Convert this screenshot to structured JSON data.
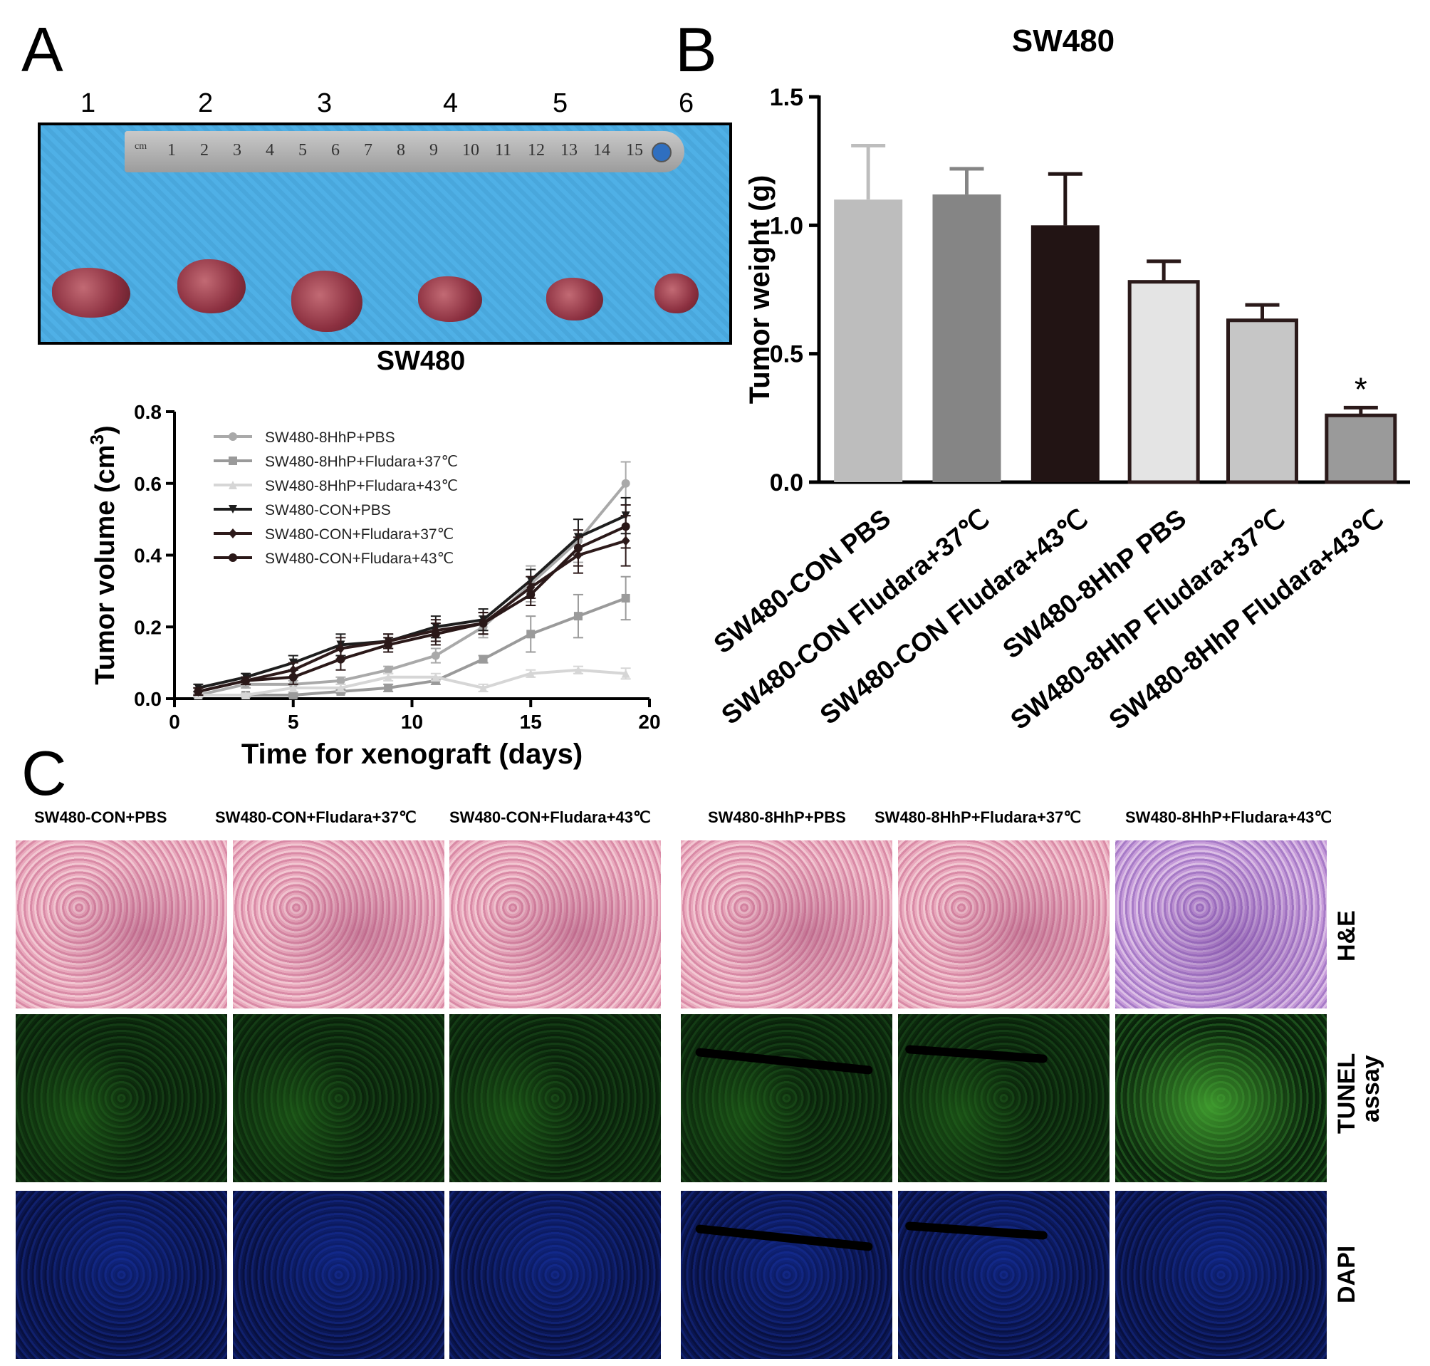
{
  "panels": {
    "A": "A",
    "B": "B",
    "C": "C"
  },
  "panel_a": {
    "photo_numbers": [
      "1",
      "2",
      "3",
      "4",
      "5",
      "6"
    ],
    "photo_caption": "SW480",
    "ruler_numbers": [
      "cm",
      "1",
      "2",
      "3",
      "4",
      "5",
      "6",
      "7",
      "8",
      "9",
      "10",
      "11",
      "12",
      "13",
      "14",
      "15"
    ]
  },
  "chart_data": [
    {
      "type": "line",
      "xlabel": "Time for xenograft (days)",
      "ylabel": "Tumor volume (cm",
      "ylabel_sup": "3",
      "ylabel_close": ")",
      "xlim": [
        0,
        20
      ],
      "ylim": [
        0,
        0.8
      ],
      "xticks": [
        "0",
        "5",
        "10",
        "15",
        "20"
      ],
      "yticks": [
        "0.0",
        "0.2",
        "0.4",
        "0.6",
        "0.8"
      ],
      "legend_position": "upper-left",
      "x": [
        1,
        3,
        5,
        7,
        9,
        11,
        13,
        15,
        17,
        19
      ],
      "series": [
        {
          "name": "SW480-8HhP+PBS",
          "color": "#a9a9a9",
          "marker": "circle",
          "values": [
            0.01,
            0.04,
            0.04,
            0.05,
            0.08,
            0.12,
            0.2,
            0.32,
            0.44,
            0.6
          ],
          "errors": [
            0.005,
            0.01,
            0.01,
            0.01,
            0.01,
            0.02,
            0.03,
            0.05,
            0.06,
            0.06
          ]
        },
        {
          "name": "SW480-8HhP+Fludara+37℃",
          "color": "#9a9a9a",
          "marker": "square",
          "values": [
            0.01,
            0.01,
            0.01,
            0.02,
            0.03,
            0.05,
            0.11,
            0.18,
            0.23,
            0.28
          ],
          "errors": [
            0.005,
            0.005,
            0.005,
            0.005,
            0.01,
            0.01,
            0.01,
            0.05,
            0.06,
            0.06
          ]
        },
        {
          "name": "SW480-8HhP+Fludara+43℃",
          "color": "#d6d6d6",
          "marker": "triangle-up",
          "values": [
            0.01,
            0.01,
            0.03,
            0.03,
            0.06,
            0.06,
            0.03,
            0.07,
            0.08,
            0.07
          ],
          "errors": [
            0.005,
            0.005,
            0.01,
            0.01,
            0.01,
            0.01,
            0.01,
            0.01,
            0.01,
            0.015
          ]
        },
        {
          "name": "SW480-CON+PBS",
          "color": "#1e1e1e",
          "marker": "triangle-down",
          "values": [
            0.03,
            0.06,
            0.1,
            0.15,
            0.16,
            0.2,
            0.22,
            0.33,
            0.45,
            0.51
          ],
          "errors": [
            0.01,
            0.01,
            0.02,
            0.03,
            0.02,
            0.03,
            0.03,
            0.03,
            0.05,
            0.05
          ]
        },
        {
          "name": "SW480-CON+Fludara+37℃",
          "color": "#2e1b1b",
          "marker": "diamond",
          "values": [
            0.02,
            0.05,
            0.08,
            0.14,
            0.16,
            0.19,
            0.21,
            0.31,
            0.4,
            0.44
          ],
          "errors": [
            0.01,
            0.01,
            0.02,
            0.03,
            0.02,
            0.03,
            0.03,
            0.03,
            0.05,
            0.07
          ]
        },
        {
          "name": "SW480-CON+Fludara+43℃",
          "color": "#2a1818",
          "marker": "circle",
          "values": [
            0.02,
            0.05,
            0.06,
            0.11,
            0.15,
            0.18,
            0.21,
            0.29,
            0.42,
            0.48
          ],
          "errors": [
            0.01,
            0.01,
            0.02,
            0.03,
            0.02,
            0.03,
            0.03,
            0.03,
            0.05,
            0.06
          ]
        }
      ]
    },
    {
      "type": "bar",
      "title": "SW480",
      "ylabel": "Tumor weight (g)",
      "ylim": [
        0,
        1.5
      ],
      "yticks": [
        "0.0",
        "0.5",
        "1.0",
        "1.5"
      ],
      "categories": [
        "SW480-CON PBS",
        "SW480-CON Fludara+37℃",
        "SW480-CON Fludara+43℃",
        "SW480-8HhP PBS",
        "SW480-8HhP Fludara+37℃",
        "SW480-8HhP Fludara+43℃"
      ],
      "values": [
        1.1,
        1.12,
        1.0,
        0.78,
        0.63,
        0.26
      ],
      "errors": [
        0.21,
        0.1,
        0.2,
        0.08,
        0.06,
        0.03
      ],
      "colors": [
        "#bdbdbd",
        "#858585",
        "#221414",
        "#e4e4e4",
        "#c6c6c6",
        "#9a9a9a"
      ],
      "outlined": [
        false,
        false,
        false,
        true,
        true,
        true
      ],
      "annotations": [
        {
          "category": "SW480-8HhP Fludara+43℃",
          "text": "*"
        }
      ]
    }
  ],
  "panel_c": {
    "headers": [
      "SW480-CON+PBS",
      "SW480-CON+Fludara+37℃",
      "SW480-CON+Fludara+43℃",
      "SW480-8HhP+PBS",
      "SW480-8HhP+Fludara+37℃",
      "SW480-8HhP+Fludara+43℃"
    ],
    "row_labels": {
      "he": "H&E",
      "tunel": "TUNEL",
      "tunel_2": "assay",
      "dapi": "DAPI"
    }
  }
}
